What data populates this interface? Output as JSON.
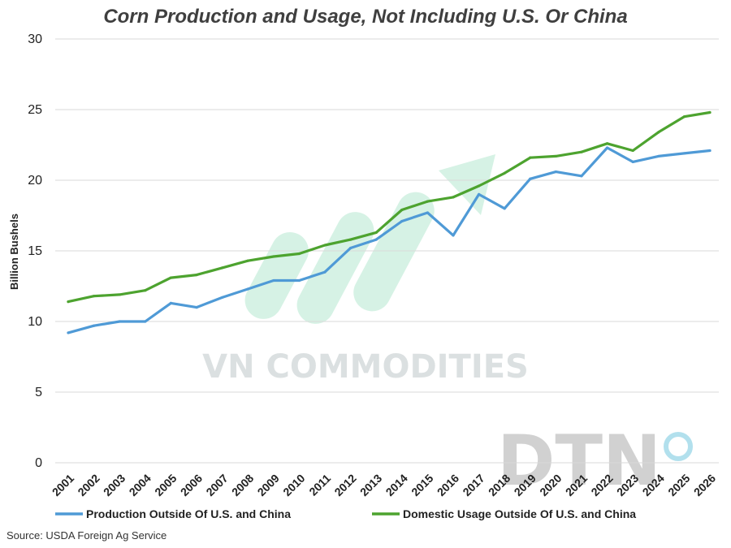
{
  "chart_data": {
    "type": "line",
    "title": "Corn Production and Usage, Not Including U.S. Or China",
    "xlabel": "",
    "ylabel": "Billion Bushels",
    "ylim": [
      0,
      30
    ],
    "yticks": [
      0,
      5,
      10,
      15,
      20,
      25,
      30
    ],
    "grid": true,
    "legend_position": "bottom",
    "categories": [
      "2001",
      "2002",
      "2003",
      "2004",
      "2005",
      "2006",
      "2007",
      "2008",
      "2009",
      "2010",
      "2011",
      "2012",
      "2013",
      "2014",
      "2015",
      "2016",
      "2017",
      "2018",
      "2019",
      "2020",
      "2021",
      "2022",
      "2023",
      "2024",
      "2025",
      "2026"
    ],
    "series": [
      {
        "name": "Production Outside Of U.S. and China",
        "color": "#4f9ad6",
        "values": [
          9.2,
          9.7,
          10.0,
          10.0,
          11.3,
          11.0,
          11.7,
          12.3,
          12.9,
          12.9,
          13.5,
          15.2,
          15.8,
          17.1,
          17.7,
          16.1,
          19.0,
          18.0,
          20.1,
          20.6,
          20.3,
          22.3,
          21.3,
          21.7,
          21.9,
          22.1
        ]
      },
      {
        "name": "Domestic Usage Outside Of U.S. and China",
        "color": "#4da32f",
        "values": [
          11.4,
          11.8,
          11.9,
          12.2,
          13.1,
          13.3,
          13.8,
          14.3,
          14.6,
          14.8,
          15.4,
          15.8,
          16.3,
          17.9,
          18.5,
          18.8,
          19.6,
          20.5,
          21.6,
          21.7,
          22.0,
          22.6,
          22.1,
          23.4,
          24.5,
          24.8
        ]
      }
    ]
  },
  "source": "Source: USDA Foreign Ag Service",
  "watermark": {
    "text": "VN COMMODITIES",
    "logo": "DTN",
    "arrow_color": "#9fe0c0"
  }
}
